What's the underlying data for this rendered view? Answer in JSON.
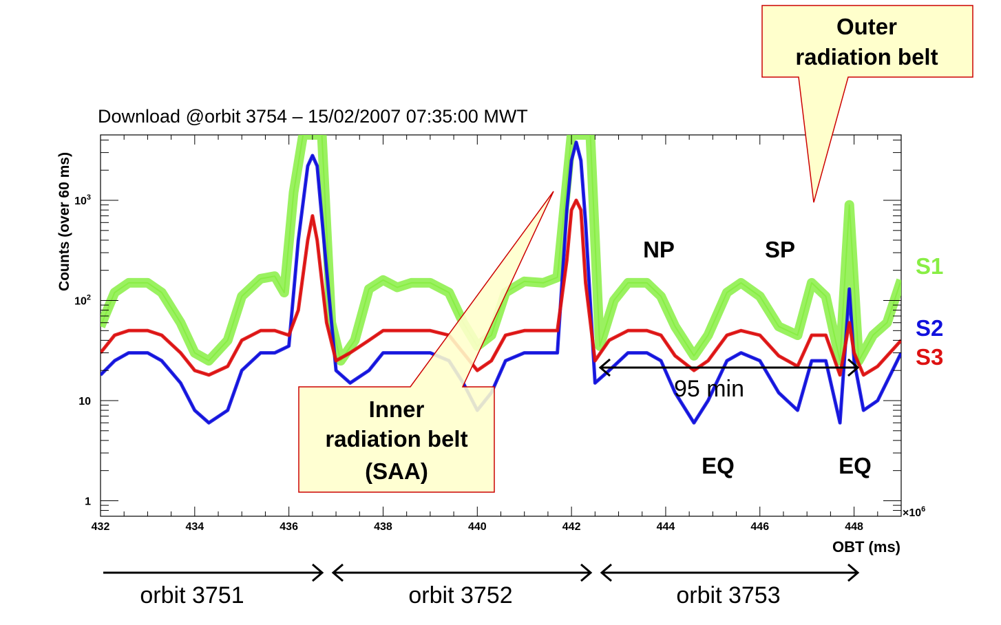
{
  "chart_data": {
    "type": "line",
    "title": "Download @orbit 3754 – 15/02/2007 07:35:00 MWT",
    "xlabel": "OBT (ms)",
    "ylabel": "Counts (over 60 ms)",
    "x_multiplier": "×10",
    "x_multiplier_exp": "6",
    "xlim": [
      432,
      449
    ],
    "ylim": [
      0.7,
      4500
    ],
    "yscale": "log",
    "x_ticks": [
      432,
      434,
      436,
      438,
      440,
      442,
      444,
      446,
      448
    ],
    "x_tick_labels": [
      "432",
      "434",
      "436",
      "438",
      "440",
      "442",
      "444",
      "446",
      "448"
    ],
    "y_ticks": [
      {
        "value": 1,
        "label": "1",
        "exp": ""
      },
      {
        "value": 10,
        "label": "10",
        "exp": ""
      },
      {
        "value": 100,
        "label": "10",
        "exp": "2"
      },
      {
        "value": 1000,
        "label": "10",
        "exp": "3"
      }
    ],
    "series": [
      {
        "name": "S1",
        "color": "#88ee44",
        "x": [
          432.0,
          432.3,
          432.6,
          433.0,
          433.3,
          433.7,
          434.0,
          434.3,
          434.7,
          435.0,
          435.4,
          435.7,
          435.9,
          436.1,
          436.3,
          436.5,
          436.7,
          436.9,
          437.1,
          437.4,
          437.7,
          438.0,
          438.3,
          438.6,
          439.0,
          439.4,
          439.7,
          440.0,
          440.3,
          440.6,
          441.0,
          441.4,
          441.7,
          442.0,
          442.2,
          442.4,
          442.6,
          442.9,
          443.2,
          443.6,
          443.9,
          444.2,
          444.6,
          444.9,
          445.3,
          445.6,
          446.0,
          446.4,
          446.8,
          447.1,
          447.4,
          447.7,
          447.9,
          448.1,
          448.4,
          448.7,
          449.0
        ],
        "values": [
          55,
          120,
          150,
          150,
          120,
          60,
          30,
          25,
          40,
          110,
          165,
          175,
          120,
          1200,
          4500,
          4500,
          4500,
          60,
          25,
          40,
          130,
          160,
          135,
          150,
          150,
          120,
          60,
          35,
          45,
          120,
          155,
          150,
          170,
          4500,
          4500,
          4500,
          35,
          100,
          150,
          150,
          110,
          55,
          28,
          45,
          120,
          150,
          110,
          55,
          45,
          150,
          110,
          25,
          900,
          25,
          45,
          60,
          160
        ]
      },
      {
        "name": "S2",
        "color": "#1111dd",
        "x": [
          432.0,
          432.3,
          432.6,
          433.0,
          433.3,
          433.7,
          434.0,
          434.3,
          434.7,
          435.0,
          435.4,
          435.7,
          436.0,
          436.2,
          436.4,
          436.5,
          436.6,
          436.8,
          437.0,
          437.3,
          437.7,
          438.0,
          438.3,
          438.6,
          439.0,
          439.4,
          439.7,
          440.0,
          440.3,
          440.6,
          441.0,
          441.4,
          441.7,
          441.9,
          442.0,
          442.1,
          442.2,
          442.3,
          442.5,
          442.8,
          443.2,
          443.6,
          443.9,
          444.2,
          444.6,
          444.9,
          445.3,
          445.6,
          446.0,
          446.4,
          446.8,
          447.1,
          447.4,
          447.7,
          447.9,
          448.0,
          448.2,
          448.5,
          449.0
        ],
        "values": [
          18,
          25,
          30,
          30,
          25,
          15,
          8,
          6,
          8,
          20,
          30,
          30,
          35,
          400,
          2200,
          2800,
          2200,
          200,
          20,
          15,
          20,
          30,
          30,
          30,
          30,
          25,
          15,
          8,
          12,
          25,
          30,
          30,
          30,
          800,
          2500,
          3800,
          2500,
          600,
          15,
          20,
          30,
          30,
          25,
          12,
          6,
          10,
          25,
          30,
          25,
          12,
          8,
          25,
          25,
          6,
          130,
          25,
          8,
          10,
          30
        ]
      },
      {
        "name": "S3",
        "color": "#dd1111",
        "x": [
          432.0,
          432.3,
          432.6,
          433.0,
          433.3,
          433.7,
          434.0,
          434.3,
          434.7,
          435.0,
          435.4,
          435.7,
          436.0,
          436.2,
          436.4,
          436.5,
          436.6,
          436.8,
          437.0,
          437.3,
          437.7,
          438.0,
          438.3,
          438.6,
          439.0,
          439.4,
          439.7,
          440.0,
          440.3,
          440.6,
          441.0,
          441.4,
          441.7,
          441.9,
          442.0,
          442.1,
          442.2,
          442.3,
          442.5,
          442.8,
          443.2,
          443.6,
          443.9,
          444.2,
          444.6,
          444.9,
          445.3,
          445.6,
          446.0,
          446.4,
          446.8,
          447.1,
          447.4,
          447.7,
          447.9,
          448.0,
          448.2,
          448.5,
          449.0
        ],
        "values": [
          30,
          45,
          50,
          50,
          45,
          30,
          20,
          18,
          22,
          40,
          50,
          50,
          45,
          80,
          400,
          700,
          400,
          60,
          25,
          30,
          40,
          50,
          50,
          50,
          50,
          45,
          30,
          20,
          25,
          45,
          50,
          50,
          50,
          250,
          800,
          1000,
          800,
          150,
          25,
          40,
          50,
          50,
          45,
          28,
          20,
          25,
          45,
          50,
          45,
          28,
          22,
          45,
          45,
          18,
          60,
          30,
          18,
          22,
          40
        ]
      }
    ],
    "legend_position": "right"
  },
  "annotations": {
    "np": "NP",
    "sp": "SP",
    "eq1": "EQ",
    "eq2": "EQ",
    "duration": "95 min",
    "outer_belt": [
      "Outer",
      "radiation belt"
    ],
    "inner_belt": [
      "Inner",
      "radiation belt",
      "(SAA)"
    ],
    "orbits": [
      "orbit 3751",
      "orbit 3752",
      "orbit 3753"
    ]
  },
  "colors": {
    "callout_fill": "#ffffcc",
    "callout_border": "#cc0000",
    "axis": "#000000"
  }
}
